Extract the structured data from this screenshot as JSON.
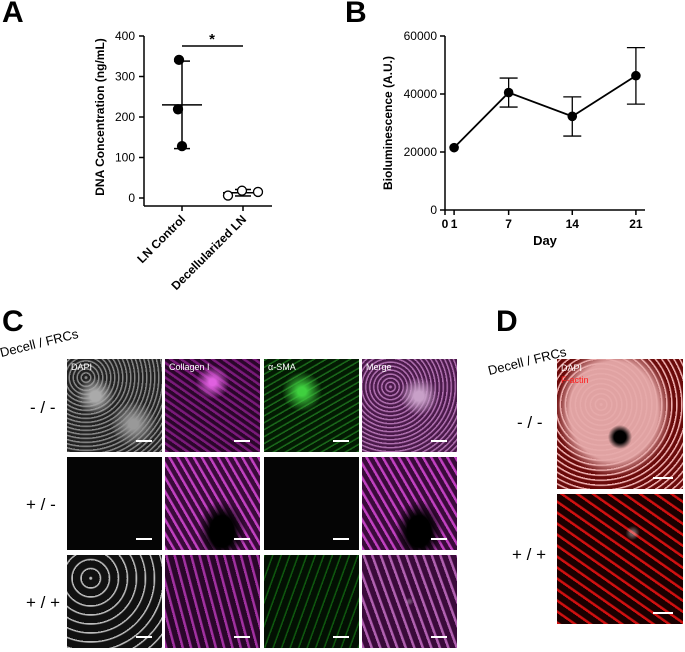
{
  "panels": {
    "a": "A",
    "b": "B",
    "c": "C",
    "d": "D"
  },
  "chart_data": [
    {
      "type": "scatter",
      "categories": [
        "LN Control",
        "Decellularized LN"
      ],
      "series": [
        {
          "values": [
            [
              341,
              219,
              128
            ],
            [
              6,
              18,
              15
            ]
          ]
        }
      ],
      "means": [
        230,
        13
      ],
      "error_bars": [
        [
          122,
          338
        ],
        [
          5,
          21
        ]
      ],
      "yticks": [
        "400",
        "300",
        "200",
        "100",
        "0"
      ],
      "ylabel": "DNA Concentration (ng/mL)",
      "ylim": [
        0,
        400
      ],
      "significance": "*",
      "filled": [
        true,
        false
      ]
    },
    {
      "type": "line",
      "x": [
        1,
        7,
        14,
        21
      ],
      "xticks": [
        "0",
        "1",
        "7",
        "14",
        "21"
      ],
      "values": [
        21500,
        40500,
        32300,
        46300
      ],
      "error_low": [
        21500,
        35500,
        25500,
        36500
      ],
      "error_high": [
        21500,
        45500,
        39000,
        56000
      ],
      "yticks": [
        "60000",
        "40000",
        "20000",
        "0"
      ],
      "ylabel": "Bioluminescence (A.U.)",
      "xlabel": "Day",
      "ylim": [
        0,
        60000
      ],
      "xlim": [
        0,
        22
      ]
    }
  ],
  "panel_c": {
    "header": "Decell / FRCs",
    "columns": [
      "DAPI",
      "Collagen I",
      "α-SMA",
      "Merge"
    ],
    "rows": [
      "- / -",
      "+ / -",
      "+ / +"
    ]
  },
  "panel_d": {
    "header": "Decell / FRCs",
    "labels": [
      "DAPI",
      "F-actin"
    ],
    "label_colors": [
      "#ffffff",
      "#ff2020"
    ],
    "rows": [
      "- / -",
      "+ / +"
    ]
  }
}
